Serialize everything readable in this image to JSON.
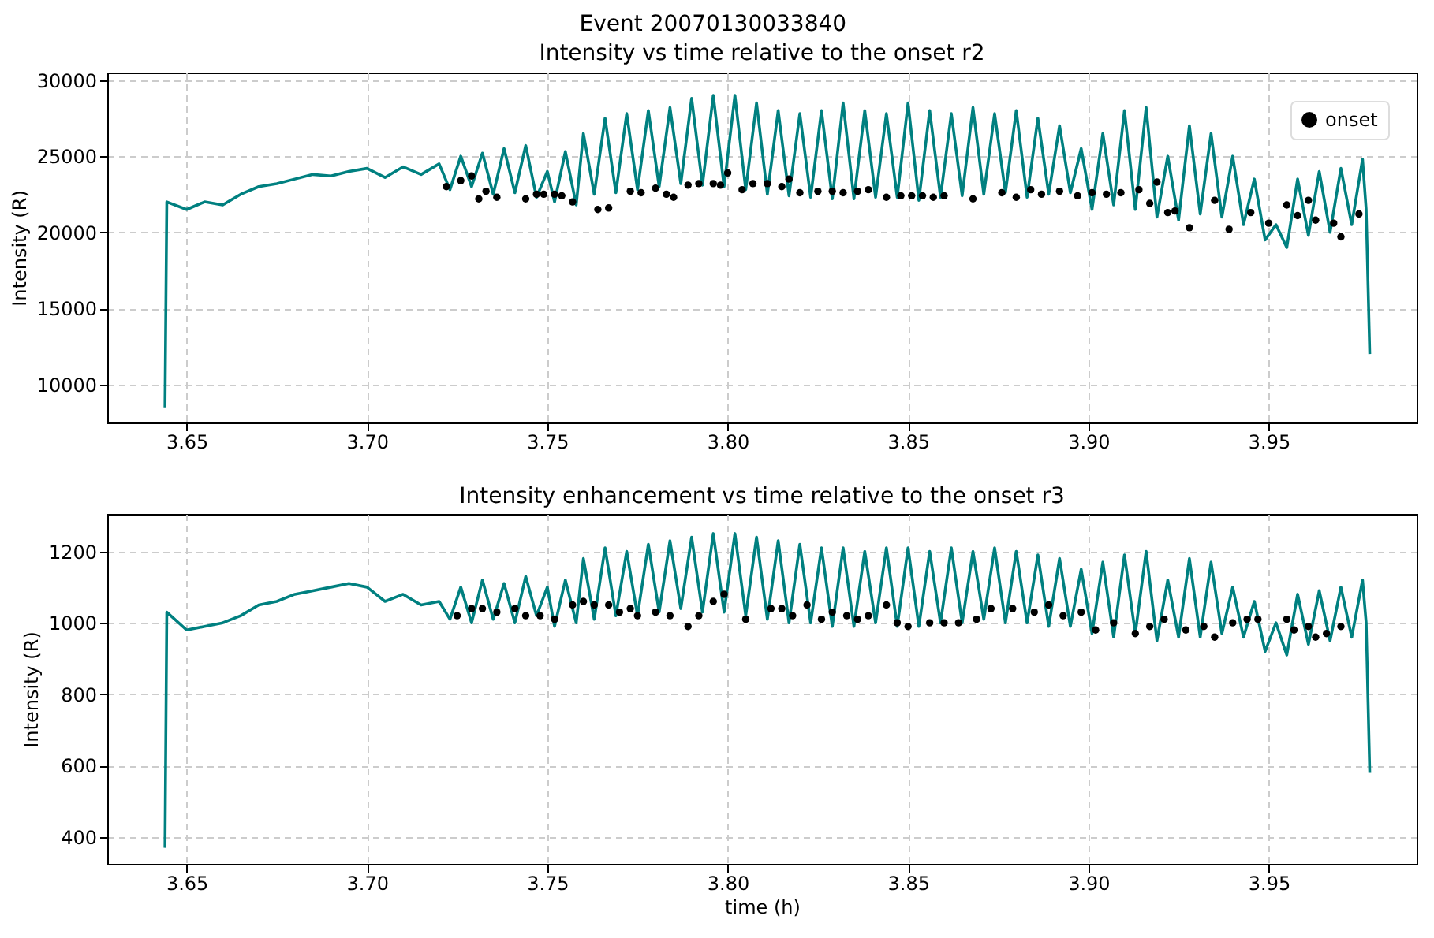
{
  "chart_data": [
    {
      "type": "line",
      "title": "Event 20070130033840",
      "subtitle": "Intensity vs time relative to the onset r2",
      "ylabel": "Intensity (R)",
      "xlim": [
        3.628,
        3.991
      ],
      "xticks": [
        3.65,
        {
          "value": 3.7,
          "label": "3.70"
        },
        3.75,
        {
          "value": 3.8,
          "label": "3.80"
        },
        3.85,
        {
          "value": 3.9,
          "label": "3.90"
        },
        3.95
      ],
      "ylim": [
        7500,
        30500
      ],
      "yticks": [
        10000,
        15000,
        20000,
        25000,
        30000
      ],
      "grid": true,
      "legend": "top right",
      "x": [
        3.644,
        3.6445,
        3.65,
        3.655,
        3.66,
        3.665,
        3.67,
        3.675,
        3.68,
        3.685,
        3.69,
        3.695,
        3.7,
        3.705,
        3.71,
        3.715,
        3.72,
        3.723,
        3.726,
        3.729,
        3.732,
        3.735,
        3.738,
        3.741,
        3.744,
        3.747,
        3.75,
        3.752,
        3.755,
        3.758,
        3.76,
        3.763,
        3.766,
        3.769,
        3.772,
        3.775,
        3.778,
        3.781,
        3.784,
        3.787,
        3.79,
        3.793,
        3.796,
        3.799,
        3.802,
        3.805,
        3.808,
        3.811,
        3.814,
        3.817,
        3.82,
        3.823,
        3.826,
        3.829,
        3.832,
        3.835,
        3.838,
        3.841,
        3.844,
        3.847,
        3.85,
        3.853,
        3.856,
        3.859,
        3.862,
        3.865,
        3.868,
        3.871,
        3.874,
        3.877,
        3.88,
        3.883,
        3.886,
        3.889,
        3.892,
        3.895,
        3.898,
        3.901,
        3.904,
        3.907,
        3.91,
        3.913,
        3.916,
        3.919,
        3.922,
        3.925,
        3.928,
        3.931,
        3.934,
        3.937,
        3.94,
        3.943,
        3.946,
        3.949,
        3.952,
        3.955,
        3.958,
        3.961,
        3.964,
        3.967,
        3.97,
        3.973,
        3.976,
        3.977,
        3.978
      ],
      "series": [
        {
          "type": "line",
          "color": "#008080",
          "line_style": "solid",
          "values": [
            8500,
            22000,
            21500,
            22000,
            21800,
            22500,
            23000,
            23200,
            23500,
            23800,
            23700,
            24000,
            24200,
            23600,
            24300,
            23800,
            24500,
            22800,
            25000,
            23000,
            25200,
            22500,
            25500,
            22600,
            25700,
            22300,
            24000,
            22000,
            25300,
            21800,
            26500,
            22500,
            27500,
            22600,
            27800,
            22800,
            28000,
            23000,
            28200,
            23200,
            28800,
            23100,
            29000,
            23000,
            29000,
            22800,
            28500,
            22500,
            28000,
            22400,
            27800,
            22300,
            28000,
            22200,
            28500,
            22200,
            28000,
            22300,
            27800,
            22300,
            28500,
            22100,
            28000,
            22300,
            27800,
            22400,
            28200,
            22500,
            27800,
            22600,
            28000,
            22300,
            27500,
            22500,
            27000,
            22600,
            25500,
            21500,
            26500,
            21800,
            28000,
            21500,
            28200,
            21000,
            25000,
            20800,
            27000,
            21200,
            26500,
            21000,
            25000,
            20500,
            23500,
            19500,
            20500,
            19000,
            23500,
            19800,
            24000,
            20000,
            24200,
            20500,
            24800,
            21500,
            12000
          ]
        },
        {
          "type": "scatter",
          "name": "onset",
          "color": "#000000",
          "marker": "circle",
          "x": [
            3.722,
            3.726,
            3.729,
            3.731,
            3.733,
            3.736,
            3.744,
            3.747,
            3.749,
            3.752,
            3.754,
            3.757,
            3.764,
            3.767,
            3.773,
            3.776,
            3.78,
            3.783,
            3.785,
            3.789,
            3.792,
            3.796,
            3.798,
            3.8,
            3.804,
            3.807,
            3.811,
            3.815,
            3.817,
            3.82,
            3.825,
            3.829,
            3.832,
            3.836,
            3.839,
            3.844,
            3.848,
            3.851,
            3.854,
            3.857,
            3.86,
            3.868,
            3.876,
            3.88,
            3.884,
            3.887,
            3.892,
            3.897,
            3.901,
            3.905,
            3.909,
            3.914,
            3.917,
            3.919,
            3.922,
            3.924,
            3.928,
            3.935,
            3.939,
            3.945,
            3.95,
            3.955,
            3.958,
            3.961,
            3.963,
            3.968,
            3.97,
            3.975
          ],
          "values": [
            23000,
            23400,
            23700,
            22200,
            22700,
            22300,
            22200,
            22500,
            22500,
            22500,
            22400,
            22000,
            21500,
            21600,
            22700,
            22600,
            22900,
            22500,
            22300,
            23100,
            23200,
            23200,
            23100,
            23900,
            22800,
            23200,
            23200,
            23000,
            23500,
            22600,
            22700,
            22700,
            22600,
            22700,
            22800,
            22300,
            22400,
            22400,
            22400,
            22300,
            22400,
            22200,
            22600,
            22300,
            22800,
            22500,
            22700,
            22400,
            22600,
            22500,
            22600,
            22800,
            21900,
            23300,
            21300,
            21400,
            20300,
            22100,
            20200,
            21300,
            20600,
            21800,
            21100,
            22100,
            20800,
            20600,
            19700,
            21200
          ]
        }
      ]
    },
    {
      "type": "line",
      "title": "Intensity enhancement vs time relative to the onset r3",
      "ylabel": "Intensity (R)",
      "xlabel": "time (h)",
      "xlim": [
        3.628,
        3.991
      ],
      "xticks": [
        3.65,
        {
          "value": 3.7,
          "label": "3.70"
        },
        3.75,
        {
          "value": 3.8,
          "label": "3.80"
        },
        3.85,
        {
          "value": 3.9,
          "label": "3.90"
        },
        3.95
      ],
      "ylim": [
        325,
        1305
      ],
      "yticks": [
        400,
        600,
        800,
        1000,
        1200
      ],
      "grid": true,
      "legend": "top right",
      "x": [
        3.644,
        3.6445,
        3.65,
        3.655,
        3.66,
        3.665,
        3.67,
        3.675,
        3.68,
        3.685,
        3.69,
        3.695,
        3.7,
        3.705,
        3.71,
        3.715,
        3.72,
        3.723,
        3.726,
        3.729,
        3.732,
        3.735,
        3.738,
        3.741,
        3.744,
        3.747,
        3.75,
        3.752,
        3.755,
        3.758,
        3.76,
        3.763,
        3.766,
        3.769,
        3.772,
        3.775,
        3.778,
        3.781,
        3.784,
        3.787,
        3.79,
        3.793,
        3.796,
        3.799,
        3.802,
        3.805,
        3.808,
        3.811,
        3.814,
        3.817,
        3.82,
        3.823,
        3.826,
        3.829,
        3.832,
        3.835,
        3.838,
        3.841,
        3.844,
        3.847,
        3.85,
        3.853,
        3.856,
        3.859,
        3.862,
        3.865,
        3.868,
        3.871,
        3.874,
        3.877,
        3.88,
        3.883,
        3.886,
        3.889,
        3.892,
        3.895,
        3.898,
        3.901,
        3.904,
        3.907,
        3.91,
        3.913,
        3.916,
        3.919,
        3.922,
        3.925,
        3.928,
        3.931,
        3.934,
        3.937,
        3.94,
        3.943,
        3.946,
        3.949,
        3.952,
        3.955,
        3.958,
        3.961,
        3.964,
        3.967,
        3.97,
        3.973,
        3.976,
        3.977,
        3.978
      ],
      "series": [
        {
          "type": "line",
          "color": "#008080",
          "line_style": "solid",
          "values": [
            370,
            1030,
            980,
            990,
            1000,
            1020,
            1050,
            1060,
            1080,
            1090,
            1100,
            1110,
            1100,
            1060,
            1080,
            1050,
            1060,
            1010,
            1100,
            1000,
            1120,
            1010,
            1110,
            1000,
            1130,
            1020,
            1100,
            990,
            1120,
            1000,
            1180,
            1010,
            1210,
            1020,
            1200,
            1020,
            1220,
            1030,
            1230,
            1040,
            1240,
            1030,
            1250,
            1030,
            1250,
            1020,
            1240,
            1010,
            1230,
            1000,
            1220,
            1000,
            1210,
            990,
            1210,
            990,
            1200,
            1000,
            1210,
            990,
            1210,
            990,
            1200,
            1000,
            1210,
            1000,
            1200,
            1010,
            1210,
            1000,
            1200,
            1000,
            1190,
            990,
            1180,
            990,
            1150,
            970,
            1170,
            960,
            1190,
            970,
            1200,
            950,
            1120,
            960,
            1180,
            960,
            1170,
            970,
            1100,
            960,
            1060,
            920,
            1000,
            910,
            1080,
            940,
            1090,
            950,
            1100,
            960,
            1120,
            1000,
            580
          ]
        },
        {
          "type": "scatter",
          "name": "onset",
          "color": "#000000",
          "marker": "circle",
          "x": [
            3.725,
            3.729,
            3.732,
            3.736,
            3.741,
            3.744,
            3.748,
            3.752,
            3.757,
            3.76,
            3.763,
            3.767,
            3.77,
            3.773,
            3.775,
            3.78,
            3.784,
            3.789,
            3.792,
            3.796,
            3.799,
            3.805,
            3.812,
            3.815,
            3.818,
            3.822,
            3.826,
            3.829,
            3.833,
            3.836,
            3.839,
            3.844,
            3.847,
            3.85,
            3.856,
            3.86,
            3.864,
            3.869,
            3.873,
            3.879,
            3.885,
            3.889,
            3.893,
            3.898,
            3.902,
            3.907,
            3.913,
            3.917,
            3.921,
            3.927,
            3.932,
            3.935,
            3.94,
            3.944,
            3.947,
            3.955,
            3.957,
            3.961,
            3.963,
            3.966,
            3.97
          ],
          "values": [
            1020,
            1040,
            1040,
            1030,
            1040,
            1020,
            1020,
            1010,
            1050,
            1060,
            1050,
            1050,
            1030,
            1040,
            1020,
            1030,
            1020,
            990,
            1020,
            1060,
            1080,
            1010,
            1040,
            1040,
            1020,
            1050,
            1010,
            1030,
            1020,
            1010,
            1020,
            1050,
            1000,
            990,
            1000,
            1000,
            1000,
            1010,
            1040,
            1040,
            1030,
            1050,
            1020,
            1030,
            980,
            1000,
            970,
            990,
            1010,
            980,
            990,
            960,
            1000,
            1010,
            1010,
            1010,
            980,
            990,
            960,
            970,
            990
          ]
        }
      ]
    }
  ]
}
